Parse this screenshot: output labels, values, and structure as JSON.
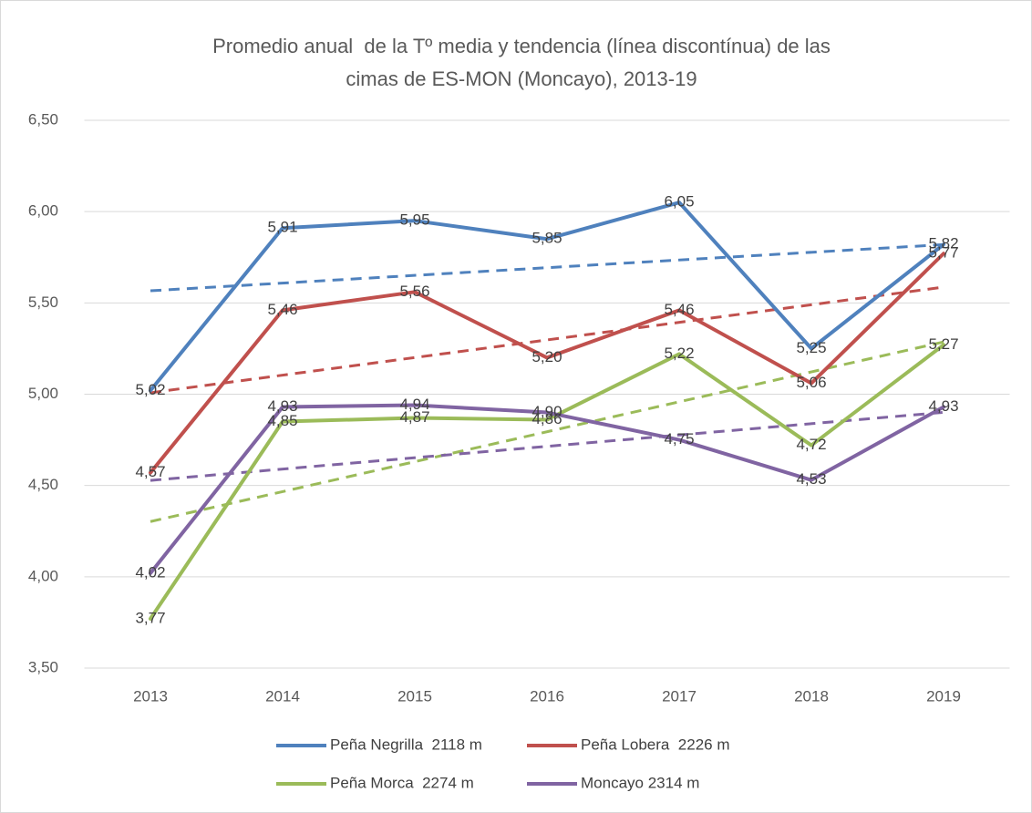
{
  "chart_data": {
    "type": "line",
    "title": [
      "Promedio anual  de la Tº media y tendencia (línea discontínua) de las",
      "cimas de ES-MON (Moncayo), 2013-19"
    ],
    "categories": [
      "2013",
      "2014",
      "2015",
      "2016",
      "2017",
      "2018",
      "2019"
    ],
    "series": [
      {
        "name": "Peña Negrilla  2118 m",
        "color": "#4f81bd",
        "values": [
          5.02,
          5.91,
          5.95,
          5.85,
          6.05,
          5.25,
          5.82
        ],
        "value_labels": [
          "5,02",
          "5,91",
          "5,95",
          "5,85",
          "6,05",
          "5,25",
          "5,82"
        ]
      },
      {
        "name": "Peña Lobera  2226 m",
        "color": "#c0504d",
        "values": [
          4.57,
          5.46,
          5.56,
          5.2,
          5.46,
          5.06,
          5.77
        ],
        "value_labels": [
          "4,57",
          "5,46",
          "5,56",
          "5,20",
          "5,46",
          "5,06",
          "5,77"
        ]
      },
      {
        "name": "Peña Morca  2274 m",
        "color": "#9bbb59",
        "values": [
          3.77,
          4.85,
          4.87,
          4.86,
          5.22,
          4.72,
          5.27
        ],
        "value_labels": [
          "3,77",
          "4,85",
          "4,87",
          "4,86",
          "5,22",
          "4,72",
          "5,27"
        ]
      },
      {
        "name": "Moncayo 2314 m",
        "color": "#8064a2",
        "values": [
          4.02,
          4.93,
          4.94,
          4.9,
          4.75,
          4.53,
          4.93
        ],
        "value_labels": [
          "4,02",
          "4,93",
          "4,94",
          "4,90",
          "4,75",
          "4,53",
          "4,93"
        ]
      }
    ],
    "ylim": [
      3.5,
      6.5
    ],
    "yticks": [
      {
        "value": 3.5,
        "label": "3,50"
      },
      {
        "value": 4,
        "label": "4,00"
      },
      {
        "value": 4.5,
        "label": "4,50"
      },
      {
        "value": 5,
        "label": "5,00"
      },
      {
        "value": 5.5,
        "label": "5,50"
      },
      {
        "value": 6,
        "label": "6,00"
      },
      {
        "value": 6.5,
        "label": "6,50"
      }
    ],
    "grid": true,
    "trendline": true,
    "legend": "bottom"
  }
}
